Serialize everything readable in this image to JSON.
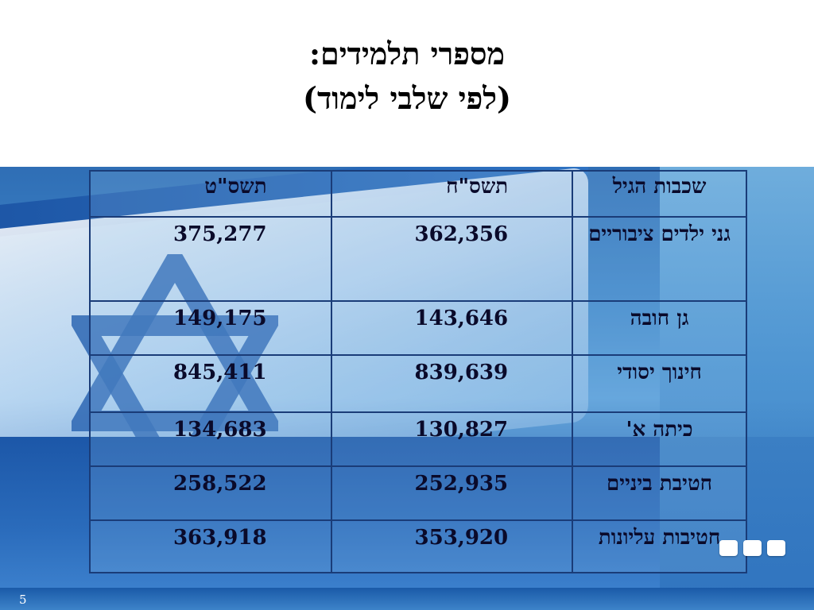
{
  "title": {
    "line1": "מספרי תלמידים:",
    "line2": "(לפי שלבי לימוד)"
  },
  "table": {
    "headers": [
      "שכבות הגיל",
      "תשס\"ח",
      "תשס\"ט"
    ],
    "rows": [
      {
        "category": "גני ילדים ציבוריים",
        "y2008": "362,356",
        "y2009": "375,277"
      },
      {
        "category": "גן חובה",
        "y2008": "143,646",
        "y2009": "149,175"
      },
      {
        "category": "חינוך יסודי",
        "y2008": "839,639",
        "y2009": "845,411"
      },
      {
        "category": "כיתה א'",
        "y2008": "130,827",
        "y2009": "134,683"
      },
      {
        "category": "חטיבת ביניים",
        "y2008": "252,935",
        "y2009": "258,522"
      },
      {
        "category": "חטיבות עליונות",
        "y2008": "353,920",
        "y2009": "363,918"
      }
    ]
  },
  "page_number": "5",
  "colors": {
    "banner_blue": "#2f6eb5",
    "table_border": "#1a3c78",
    "text": "#0a0a2a"
  },
  "icons": [
    "star-of-david-icon",
    "nav-square-icon"
  ]
}
